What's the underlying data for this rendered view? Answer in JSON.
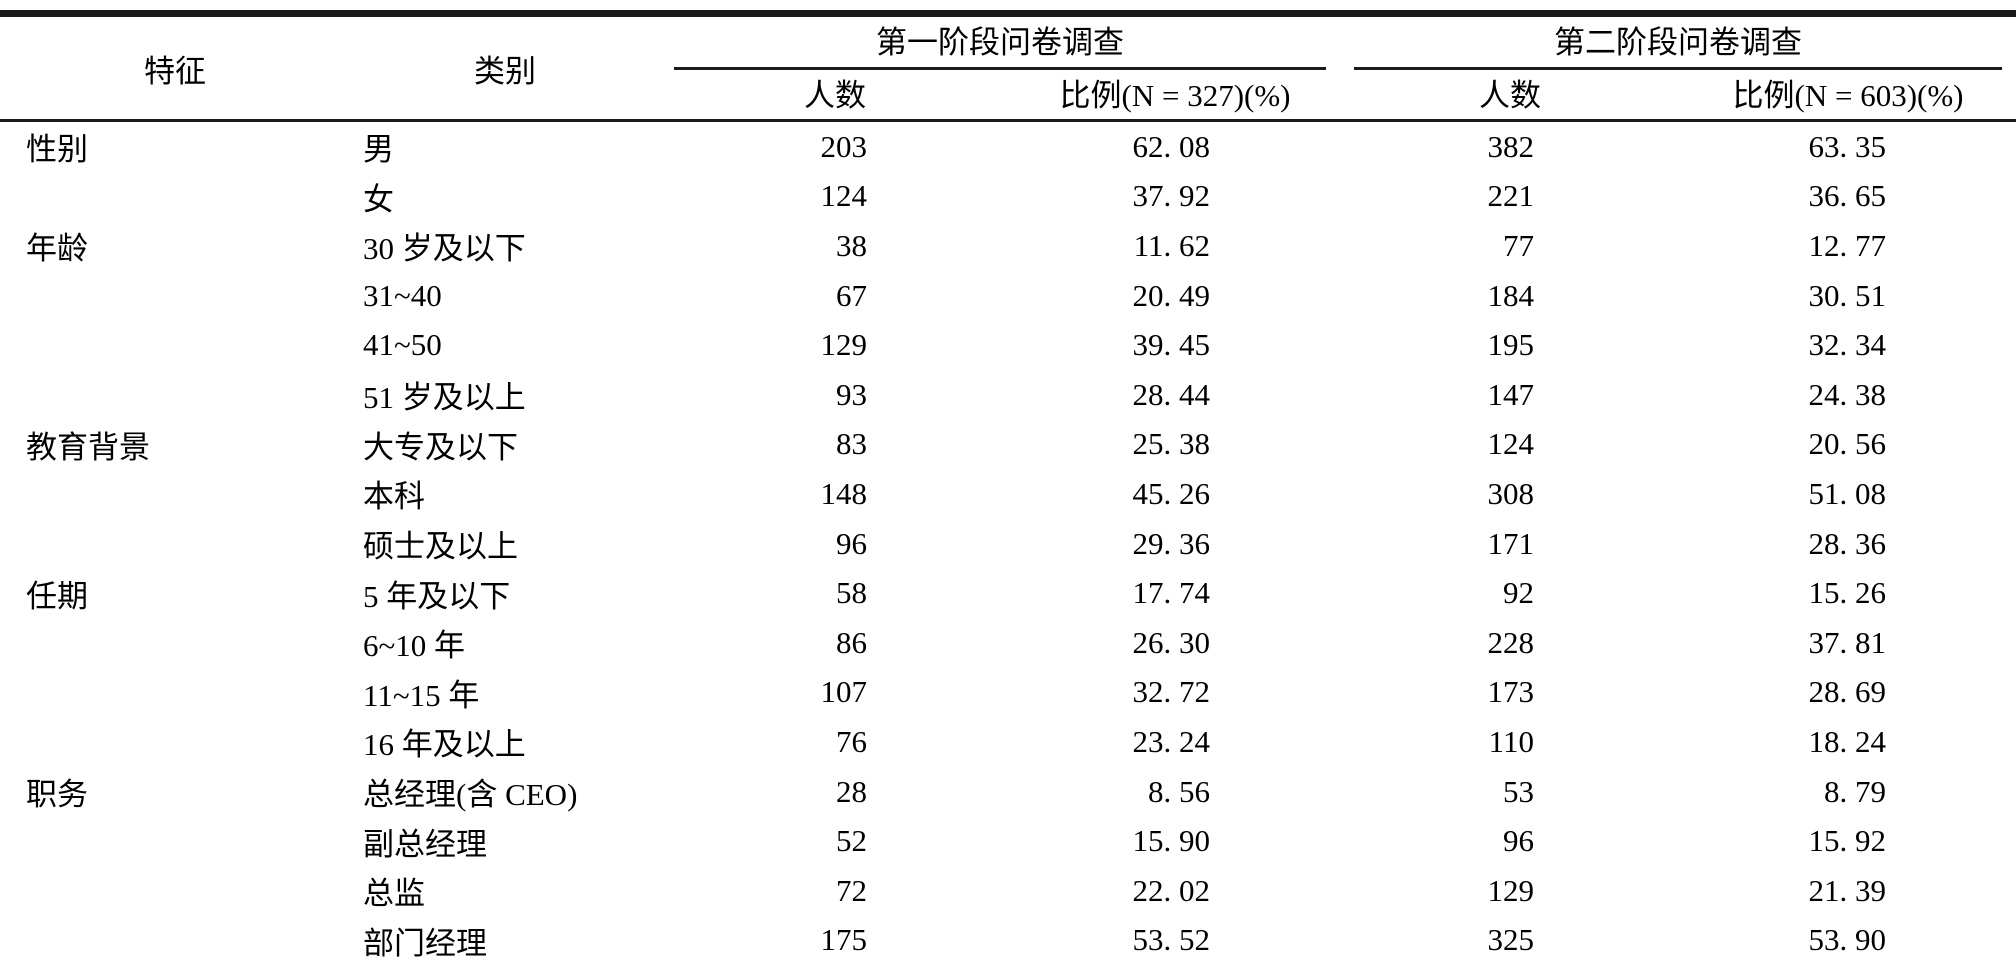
{
  "colors": {
    "text": "#000000",
    "background": "#ffffff",
    "rule": "#1a1a1a"
  },
  "table": {
    "header": {
      "characteristic": "特征",
      "category": "类别",
      "group1": "第一阶段问卷调查",
      "group2": "第二阶段问卷调查",
      "count1": "人数",
      "ratio1": "比例(N = 327)(%)",
      "count2": "人数",
      "ratio2": "比例(N = 603)(%)"
    },
    "rows": [
      {
        "characteristic": "性别",
        "category": "男",
        "count1": "203",
        "ratio1": "62. 08",
        "count2": "382",
        "ratio2": "63. 35"
      },
      {
        "characteristic": "",
        "category": "女",
        "count1": "124",
        "ratio1": "37. 92",
        "count2": "221",
        "ratio2": "36. 65"
      },
      {
        "characteristic": "年龄",
        "category": "30 岁及以下",
        "count1": "38",
        "ratio1": "11. 62",
        "count2": "77",
        "ratio2": "12. 77"
      },
      {
        "characteristic": "",
        "category": "31~40",
        "count1": "67",
        "ratio1": "20. 49",
        "count2": "184",
        "ratio2": "30. 51"
      },
      {
        "characteristic": "",
        "category": "41~50",
        "count1": "129",
        "ratio1": "39. 45",
        "count2": "195",
        "ratio2": "32. 34"
      },
      {
        "characteristic": "",
        "category": "51 岁及以上",
        "count1": "93",
        "ratio1": "28. 44",
        "count2": "147",
        "ratio2": "24. 38"
      },
      {
        "characteristic": "教育背景",
        "category": "大专及以下",
        "count1": "83",
        "ratio1": "25. 38",
        "count2": "124",
        "ratio2": "20. 56"
      },
      {
        "characteristic": "",
        "category": "本科",
        "count1": "148",
        "ratio1": "45. 26",
        "count2": "308",
        "ratio2": "51. 08"
      },
      {
        "characteristic": "",
        "category": "硕士及以上",
        "count1": "96",
        "ratio1": "29. 36",
        "count2": "171",
        "ratio2": "28. 36"
      },
      {
        "characteristic": "任期",
        "category": "5 年及以下",
        "count1": "58",
        "ratio1": "17. 74",
        "count2": "92",
        "ratio2": "15. 26"
      },
      {
        "characteristic": "",
        "category": "6~10 年",
        "count1": "86",
        "ratio1": "26. 30",
        "count2": "228",
        "ratio2": "37. 81"
      },
      {
        "characteristic": "",
        "category": "11~15 年",
        "count1": "107",
        "ratio1": "32. 72",
        "count2": "173",
        "ratio2": "28. 69"
      },
      {
        "characteristic": "",
        "category": "16 年及以上",
        "count1": "76",
        "ratio1": "23. 24",
        "count2": "110",
        "ratio2": "18. 24"
      },
      {
        "characteristic": "职务",
        "category": "总经理(含 CEO)",
        "count1": "28",
        "ratio1": "8. 56",
        "count2": "53",
        "ratio2": "8. 79"
      },
      {
        "characteristic": "",
        "category": "副总经理",
        "count1": "52",
        "ratio1": "15. 90",
        "count2": "96",
        "ratio2": "15. 92"
      },
      {
        "characteristic": "",
        "category": "总监",
        "count1": "72",
        "ratio1": "22. 02",
        "count2": "129",
        "ratio2": "21. 39"
      },
      {
        "characteristic": "",
        "category": "部门经理",
        "count1": "175",
        "ratio1": "53. 52",
        "count2": "325",
        "ratio2": "53. 90"
      }
    ]
  }
}
